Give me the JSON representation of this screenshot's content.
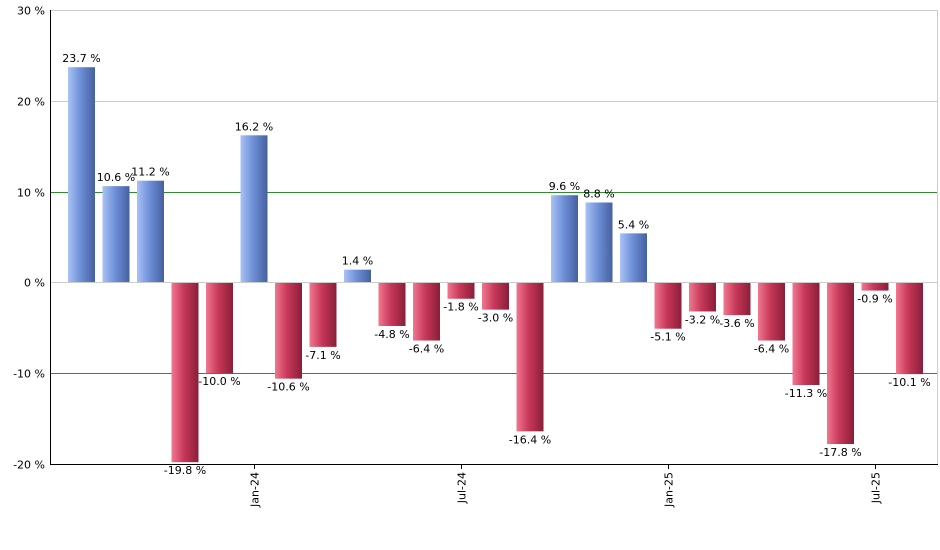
{
  "chart_data": {
    "type": "bar",
    "title": "",
    "xlabel": "",
    "ylabel": "",
    "ylim": [
      -20,
      30
    ],
    "y_ticks": [
      30,
      20,
      10,
      0,
      -10,
      -20
    ],
    "y_tick_labels": [
      "30 %",
      "20 %",
      "10 %",
      "0 %",
      "-10 %",
      "-20 %"
    ],
    "highlight_gridlines": [
      10,
      -10
    ],
    "x_tick_labels": [
      {
        "label": "Jan-24",
        "index": 5
      },
      {
        "label": "Jul-24",
        "index": 11
      },
      {
        "label": "Jan-25",
        "index": 17
      },
      {
        "label": "Jul-25",
        "index": 23
      }
    ],
    "values": [
      23.7,
      10.6,
      11.2,
      -19.8,
      -10.0,
      16.2,
      -10.6,
      -7.1,
      1.4,
      -4.8,
      -6.4,
      -1.8,
      -3.0,
      -16.4,
      9.6,
      8.8,
      5.4,
      -5.1,
      -3.2,
      -3.6,
      -6.4,
      -11.3,
      -17.8,
      -0.9,
      -10.1
    ],
    "data_labels": [
      "23.7 %",
      "10.6 %",
      "11.2 %",
      "-19.8 %",
      "-10.0 %",
      "16.2 %",
      "-10.6 %",
      "-7.1 %",
      "1.4 %",
      "-4.8 %",
      "-6.4 %",
      "-1.8 %",
      "-3.0 %",
      "-16.4 %",
      "9.6 %",
      "8.8 %",
      "5.4 %",
      "-5.1 %",
      "-3.2 %",
      "-3.6 %",
      "-6.4 %",
      "-11.3 %",
      "-17.8 %",
      "-0.9 %",
      "-10.1 %"
    ],
    "colors": {
      "positive": "#6f91d8",
      "positive_light": "#aac3f5",
      "positive_dark": "#4560a0",
      "negative": "#c8385a",
      "negative_light": "#f07890",
      "negative_dark": "#8a1e38",
      "gridline": "#cccccc",
      "highlight_gridline": "#2e8b2e",
      "axis": "#000000"
    }
  }
}
